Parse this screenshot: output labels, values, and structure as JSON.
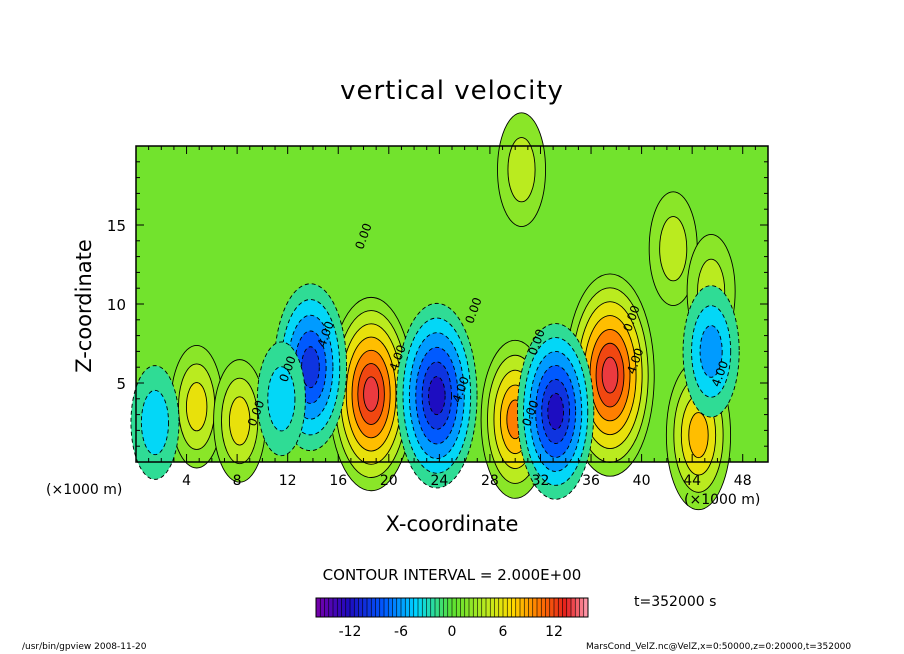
{
  "chart_data": {
    "type": "heatmap",
    "title": "vertical velocity",
    "xlabel": "X-coordinate",
    "ylabel": "Z-coordinate",
    "x_unit_label": "(×1000 m)",
    "xlim": [
      0,
      50
    ],
    "ylim": [
      0,
      20
    ],
    "x_ticks": [
      4,
      8,
      12,
      16,
      20,
      24,
      28,
      32,
      36,
      40,
      44,
      48
    ],
    "y_ticks": [
      5,
      10,
      15
    ],
    "colorbar": {
      "min": -16,
      "max": 16,
      "ticks": [
        -12,
        -6,
        0,
        6,
        12
      ]
    },
    "contour_interval": "CONTOUR INTERVAL = 2.000E+00",
    "time": "t=352000 s",
    "features": [
      {
        "x": 18.6,
        "z": 4.3,
        "value": 14
      },
      {
        "x": 37.5,
        "z": 5.5,
        "value": 15
      },
      {
        "x": 30.0,
        "z": 2.7,
        "value": 10
      },
      {
        "x": 44.5,
        "z": 1.7,
        "value": 9
      },
      {
        "x": 4.8,
        "z": 3.5,
        "value": 6
      },
      {
        "x": 8.2,
        "z": 2.6,
        "value": 6
      },
      {
        "x": 42.5,
        "z": 13.5,
        "value": 5
      },
      {
        "x": 45.5,
        "z": 10.8,
        "value": 5
      },
      {
        "x": 30.5,
        "z": 18.5,
        "value": 5
      },
      {
        "x": 13.8,
        "z": 6.0,
        "value": -11
      },
      {
        "x": 23.8,
        "z": 4.2,
        "value": -13
      },
      {
        "x": 33.2,
        "z": 3.2,
        "value": -12
      },
      {
        "x": 45.5,
        "z": 7.0,
        "value": -7
      },
      {
        "x": 1.5,
        "z": 2.5,
        "value": -5
      },
      {
        "x": 11.5,
        "z": 4.0,
        "value": -5
      }
    ],
    "contour_labels": [
      {
        "text": "0.00",
        "x": 18.3,
        "z": 14.2
      },
      {
        "text": "0.00",
        "x": 9.8,
        "z": 3.0
      },
      {
        "text": "0.00",
        "x": 12.3,
        "z": 5.8
      },
      {
        "text": "0.00",
        "x": 27.0,
        "z": 9.5
      },
      {
        "text": "0.00",
        "x": 32.0,
        "z": 7.5
      },
      {
        "text": "0.00",
        "x": 39.5,
        "z": 9.0
      },
      {
        "text": "0.00",
        "x": 31.5,
        "z": 3.0
      },
      {
        "text": "4.00",
        "x": 21.0,
        "z": 6.5
      },
      {
        "text": "4.00",
        "x": 15.3,
        "z": 8.0
      },
      {
        "text": "4.00",
        "x": 26.0,
        "z": 4.5
      },
      {
        "text": "4.00",
        "x": 39.8,
        "z": 6.3
      },
      {
        "text": "4.00",
        "x": 46.5,
        "z": 5.5
      }
    ]
  },
  "footer": {
    "left": "/usr/bin/gpview   2008-11-20",
    "right": "MarsCond_VelZ.nc@VelZ,x=0:50000,z=0:20000,t=352000"
  }
}
